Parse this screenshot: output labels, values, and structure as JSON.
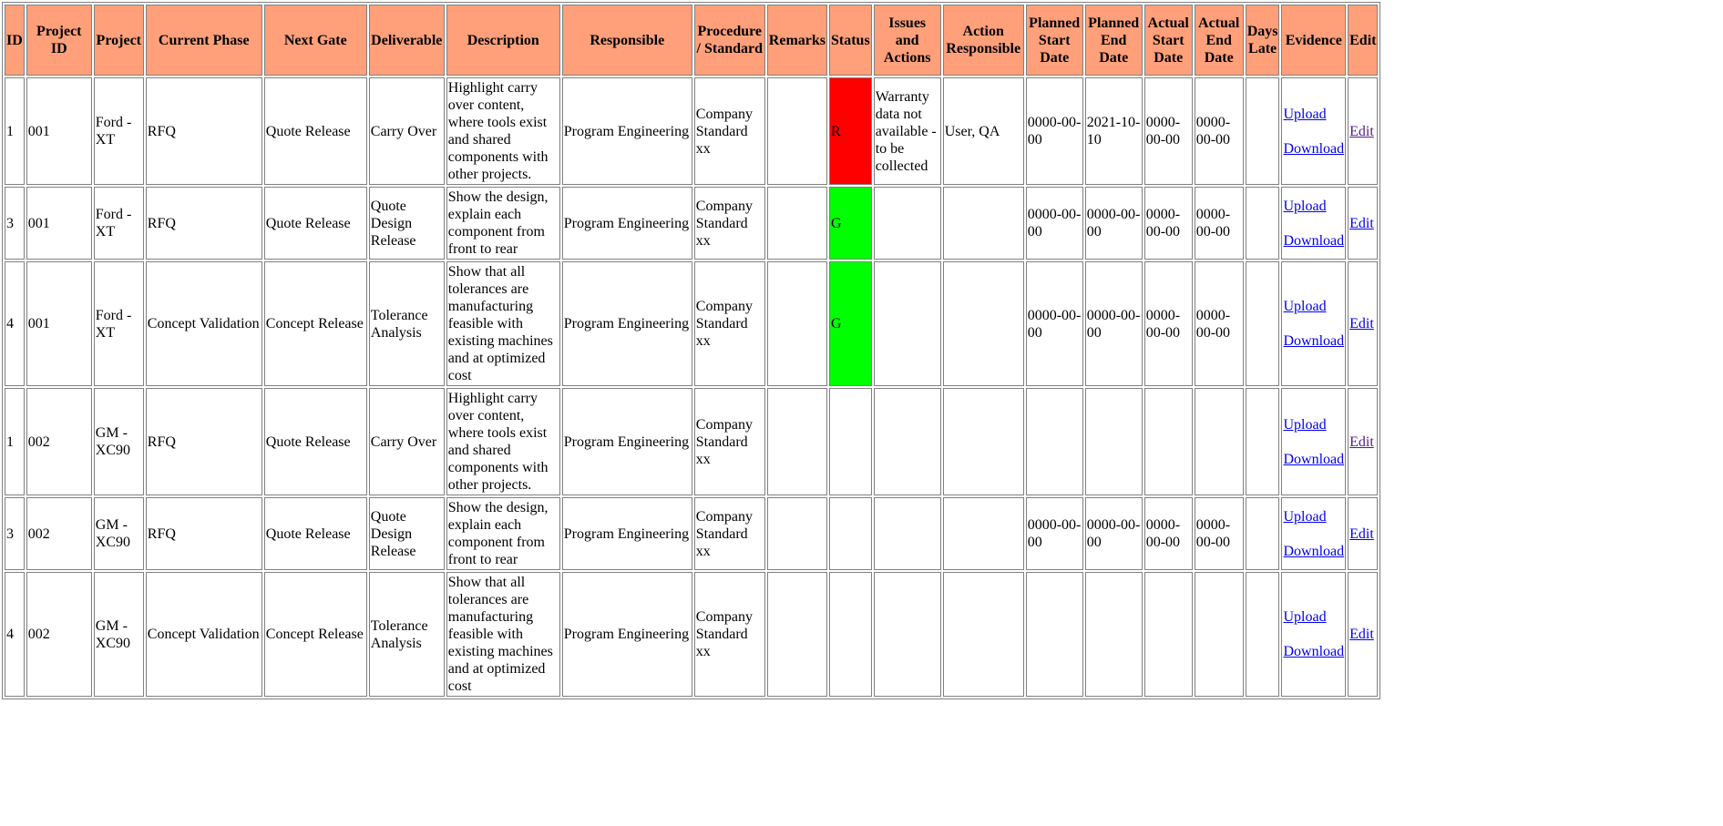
{
  "headers": {
    "id": "ID",
    "project_id": "Project ID",
    "project": "Project",
    "current_phase": "Current Phase",
    "next_gate": "Next Gate",
    "deliverable": "Deliverable",
    "description": "Description",
    "responsible": "Responsible",
    "procedure": "Procedure / Standard",
    "remarks": "Remarks",
    "status": "Status",
    "issues": "Issues and Actions",
    "action_responsible": "Action Responsible",
    "planned_start": "Planned Start Date",
    "planned_end": "Planned End Date",
    "actual_start": "Actual Start Date",
    "actual_end": "Actual End Date",
    "days_late": "Days Late",
    "evidence": "Evidence",
    "edit": "Edit"
  },
  "links": {
    "upload": "Upload",
    "download": "Download",
    "edit": "Edit"
  },
  "status_colors": {
    "R": "#ff0000",
    "G": "#00ff00",
    "header": "#ffa07a"
  },
  "rows": [
    {
      "id": "1",
      "project_id": "001",
      "project": "Ford - XT",
      "current_phase": "RFQ",
      "next_gate": "Quote Release",
      "deliverable": "Carry Over",
      "description": "Highlight carry over content, where tools exist and shared components with other projects.",
      "responsible": "Program Engineering",
      "procedure": "Company Standard xx",
      "remarks": "",
      "status": "R",
      "issues": "Warranty data not available - to be collected",
      "action_responsible": "User, QA",
      "planned_start": "0000-00-00",
      "planned_end": "2021-10-10",
      "actual_start": "0000-00-00",
      "actual_end": "0000-00-00",
      "days_late": ""
    },
    {
      "id": "3",
      "project_id": "001",
      "project": "Ford - XT",
      "current_phase": "RFQ",
      "next_gate": "Quote Release",
      "deliverable": "Quote Design Release",
      "description": "Show the design, explain each component from front to rear",
      "responsible": "Program Engineering",
      "procedure": "Company Standard xx",
      "remarks": "",
      "status": "G",
      "issues": "",
      "action_responsible": "",
      "planned_start": "0000-00-00",
      "planned_end": "0000-00-00",
      "actual_start": "0000-00-00",
      "actual_end": "0000-00-00",
      "days_late": ""
    },
    {
      "id": "4",
      "project_id": "001",
      "project": "Ford - XT",
      "current_phase": "Concept Validation",
      "next_gate": "Concept Release",
      "deliverable": "Tolerance Analysis",
      "description": "Show that all tolerances are manufacturing feasible with existing machines and at optimized cost",
      "responsible": "Program Engineering",
      "procedure": "Company Standard xx",
      "remarks": "",
      "status": "G",
      "issues": "",
      "action_responsible": "",
      "planned_start": "0000-00-00",
      "planned_end": "0000-00-00",
      "actual_start": "0000-00-00",
      "actual_end": "0000-00-00",
      "days_late": ""
    },
    {
      "id": "1",
      "project_id": "002",
      "project": "GM - XC90",
      "current_phase": "RFQ",
      "next_gate": "Quote Release",
      "deliverable": "Carry Over",
      "description": "Highlight carry over content, where tools exist and shared components with other projects.",
      "responsible": "Program Engineering",
      "procedure": "Company Standard xx",
      "remarks": "",
      "status": "",
      "issues": "",
      "action_responsible": "",
      "planned_start": "",
      "planned_end": "",
      "actual_start": "",
      "actual_end": "",
      "days_late": ""
    },
    {
      "id": "3",
      "project_id": "002",
      "project": "GM - XC90",
      "current_phase": "RFQ",
      "next_gate": "Quote Release",
      "deliverable": "Quote Design Release",
      "description": "Show the design, explain each component from front to rear",
      "responsible": "Program Engineering",
      "procedure": "Company Standard xx",
      "remarks": "",
      "status": "",
      "issues": "",
      "action_responsible": "",
      "planned_start": "0000-00-00",
      "planned_end": "0000-00-00",
      "actual_start": "0000-00-00",
      "actual_end": "0000-00-00",
      "days_late": ""
    },
    {
      "id": "4",
      "project_id": "002",
      "project": "GM - XC90",
      "current_phase": "Concept Validation",
      "next_gate": "Concept Release",
      "deliverable": "Tolerance Analysis",
      "description": "Show that all tolerances are manufacturing feasible with existing machines and at optimized cost",
      "responsible": "Program Engineering",
      "procedure": "Company Standard xx",
      "remarks": "",
      "status": "",
      "issues": "",
      "action_responsible": "",
      "planned_start": "",
      "planned_end": "",
      "actual_start": "",
      "actual_end": "",
      "days_late": ""
    }
  ]
}
